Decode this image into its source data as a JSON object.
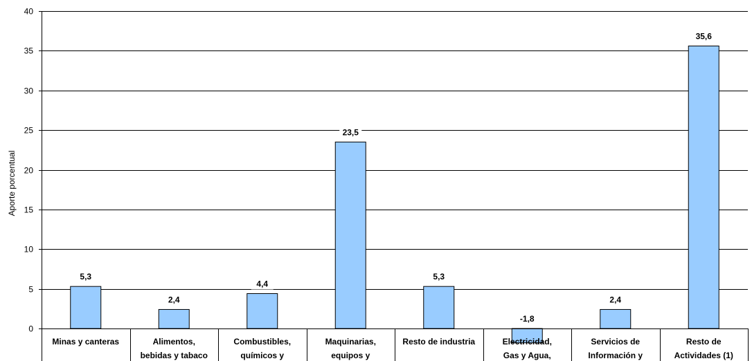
{
  "chart_data": {
    "type": "bar",
    "ylabel": "Aporte porcentual",
    "xlabel": "",
    "ylim": [
      0,
      40
    ],
    "yticks": [
      0,
      5,
      10,
      15,
      20,
      25,
      30,
      35,
      40
    ],
    "grid": true,
    "categories": [
      [
        "Minas y canteras"
      ],
      [
        "Alimentos,",
        "bebidas y tabaco"
      ],
      [
        "Combustibles,",
        "químicos y"
      ],
      [
        "Maquinarias,",
        "equipos y"
      ],
      [
        "Resto de industria"
      ],
      [
        "Electricidad,",
        "Gas y Agua,"
      ],
      [
        "Servicios de",
        "Información y"
      ],
      [
        "Resto de",
        "Actividades (1)"
      ]
    ],
    "values": [
      5.3,
      2.4,
      4.4,
      23.5,
      5.3,
      -1.8,
      2.4,
      35.6
    ],
    "data_labels": [
      "5,3",
      "2,4",
      "4,4",
      "23,5",
      "5,3",
      "-1,8",
      "2,4",
      "35,6"
    ],
    "colors": {
      "bar": "#99ccff",
      "bar_border": "#000000"
    }
  }
}
